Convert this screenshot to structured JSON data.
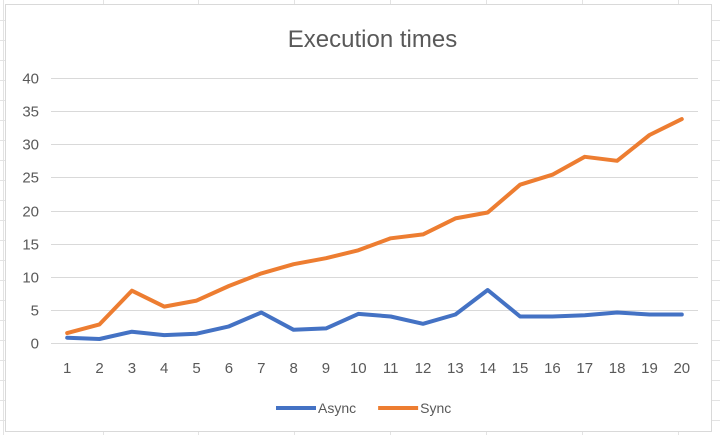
{
  "chart_data": {
    "type": "line",
    "title": "Execution times",
    "xlabel": "",
    "ylabel": "",
    "categories": [
      "1",
      "2",
      "3",
      "4",
      "5",
      "6",
      "7",
      "8",
      "9",
      "10",
      "11",
      "12",
      "13",
      "14",
      "15",
      "16",
      "17",
      "18",
      "19",
      "20"
    ],
    "ylim": [
      0,
      40
    ],
    "yticks": [
      0,
      5,
      10,
      15,
      20,
      25,
      30,
      35,
      40
    ],
    "grid": true,
    "legend_position": "bottom",
    "series": [
      {
        "name": "Async",
        "color": "#4472C4",
        "values": [
          0.8,
          0.6,
          1.7,
          1.2,
          1.4,
          2.5,
          4.6,
          2.0,
          2.2,
          4.4,
          4.0,
          2.9,
          4.3,
          8.0,
          4.0,
          4.0,
          4.2,
          4.6,
          4.3,
          4.3
        ]
      },
      {
        "name": "Sync",
        "color": "#ED7D31",
        "values": [
          1.5,
          2.8,
          7.9,
          5.5,
          6.4,
          8.6,
          10.5,
          11.9,
          12.8,
          14.0,
          15.8,
          16.4,
          18.8,
          19.7,
          23.9,
          25.4,
          28.1,
          27.5,
          31.4,
          33.8
        ]
      }
    ]
  }
}
